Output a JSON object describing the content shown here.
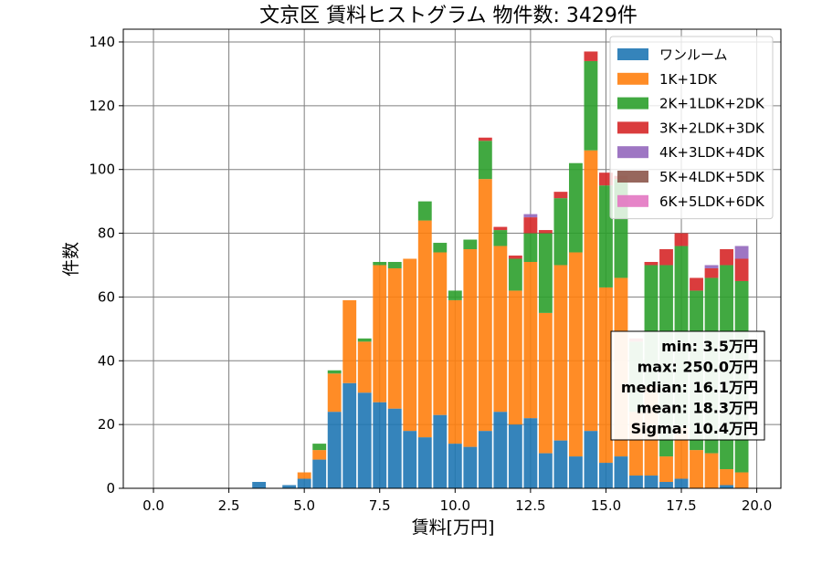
{
  "chart_data": {
    "type": "bar",
    "stacked": true,
    "title": "文京区 賃料ヒストグラム 物件数: 3429件",
    "xlabel": "賃料[万円]",
    "ylabel": "件数",
    "xlim": [
      -1.0,
      20.8
    ],
    "ylim": [
      0,
      144
    ],
    "xticks": [
      "0.0",
      "2.5",
      "5.0",
      "7.5",
      "10.0",
      "12.5",
      "15.0",
      "17.5",
      "20.0"
    ],
    "yticks": [
      "0",
      "20",
      "40",
      "60",
      "80",
      "100",
      "120",
      "140"
    ],
    "grid": true,
    "legend_position": "top-right",
    "bin_width": 0.5,
    "x": [
      3.5,
      4.0,
      4.5,
      5.0,
      5.5,
      6.0,
      6.5,
      7.0,
      7.5,
      8.0,
      8.5,
      9.0,
      9.5,
      10.0,
      10.5,
      11.0,
      11.5,
      12.0,
      12.5,
      13.0,
      13.5,
      14.0,
      14.5,
      15.0,
      15.5,
      16.0,
      16.5,
      17.0,
      17.5,
      18.0,
      18.5,
      19.0,
      19.5
    ],
    "series": [
      {
        "name": "ワンルーム",
        "color": "#1f77b4",
        "values": [
          2,
          0,
          1,
          3,
          9,
          24,
          33,
          30,
          27,
          25,
          18,
          16,
          23,
          14,
          13,
          18,
          24,
          20,
          22,
          11,
          15,
          10,
          18,
          8,
          10,
          4,
          4,
          2,
          3,
          0,
          0,
          1,
          0
        ]
      },
      {
        "name": "1K+1DK",
        "color": "#ff7f0e",
        "values": [
          0,
          0,
          0,
          2,
          3,
          12,
          26,
          16,
          43,
          44,
          54,
          68,
          51,
          45,
          62,
          79,
          52,
          42,
          49,
          44,
          55,
          64,
          88,
          55,
          56,
          20,
          28,
          8,
          16,
          12,
          11,
          5,
          5
        ]
      },
      {
        "name": "2K+1LDK+2DK",
        "color": "#2ca02c",
        "values": [
          0,
          0,
          0,
          0,
          2,
          1,
          0,
          1,
          1,
          2,
          0,
          6,
          3,
          3,
          3,
          12,
          5,
          10,
          9,
          25,
          21,
          28,
          28,
          32,
          31,
          22,
          38,
          60,
          57,
          50,
          55,
          64,
          60
        ]
      },
      {
        "name": "3K+2LDK+3DK",
        "color": "#d62728",
        "values": [
          0,
          0,
          0,
          0,
          0,
          0,
          0,
          0,
          0,
          0,
          0,
          0,
          0,
          0,
          0,
          1,
          1,
          1,
          5,
          1,
          2,
          0,
          3,
          4,
          1,
          1,
          1,
          5,
          4,
          4,
          3,
          5,
          7
        ]
      },
      {
        "name": "4K+3LDK+4DK",
        "color": "#9467bd",
        "values": [
          0,
          0,
          0,
          0,
          0,
          0,
          0,
          0,
          0,
          0,
          0,
          0,
          0,
          0,
          0,
          0,
          0,
          0,
          1,
          0,
          0,
          0,
          0,
          0,
          0,
          0,
          0,
          0,
          0,
          0,
          1,
          0,
          4
        ]
      },
      {
        "name": "5K+4LDK+5DK",
        "color": "#8c564b",
        "values": [
          0,
          0,
          0,
          0,
          0,
          0,
          0,
          0,
          0,
          0,
          0,
          0,
          0,
          0,
          0,
          0,
          0,
          0,
          0,
          0,
          0,
          0,
          0,
          0,
          0,
          0,
          0,
          0,
          0,
          0,
          0,
          0,
          0
        ]
      },
      {
        "name": "6K+5LDK+6DK",
        "color": "#e377c2",
        "values": [
          0,
          0,
          0,
          0,
          0,
          0,
          0,
          0,
          0,
          0,
          0,
          0,
          0,
          0,
          0,
          0,
          0,
          0,
          0,
          0,
          0,
          0,
          0,
          0,
          0,
          0,
          0,
          0,
          0,
          0,
          0,
          0,
          0
        ]
      }
    ],
    "stats_box": [
      "min: 3.5万円",
      "max: 250.0万円",
      "median: 16.1万円",
      "mean: 18.3万円",
      "Sigma: 10.4万円"
    ]
  }
}
